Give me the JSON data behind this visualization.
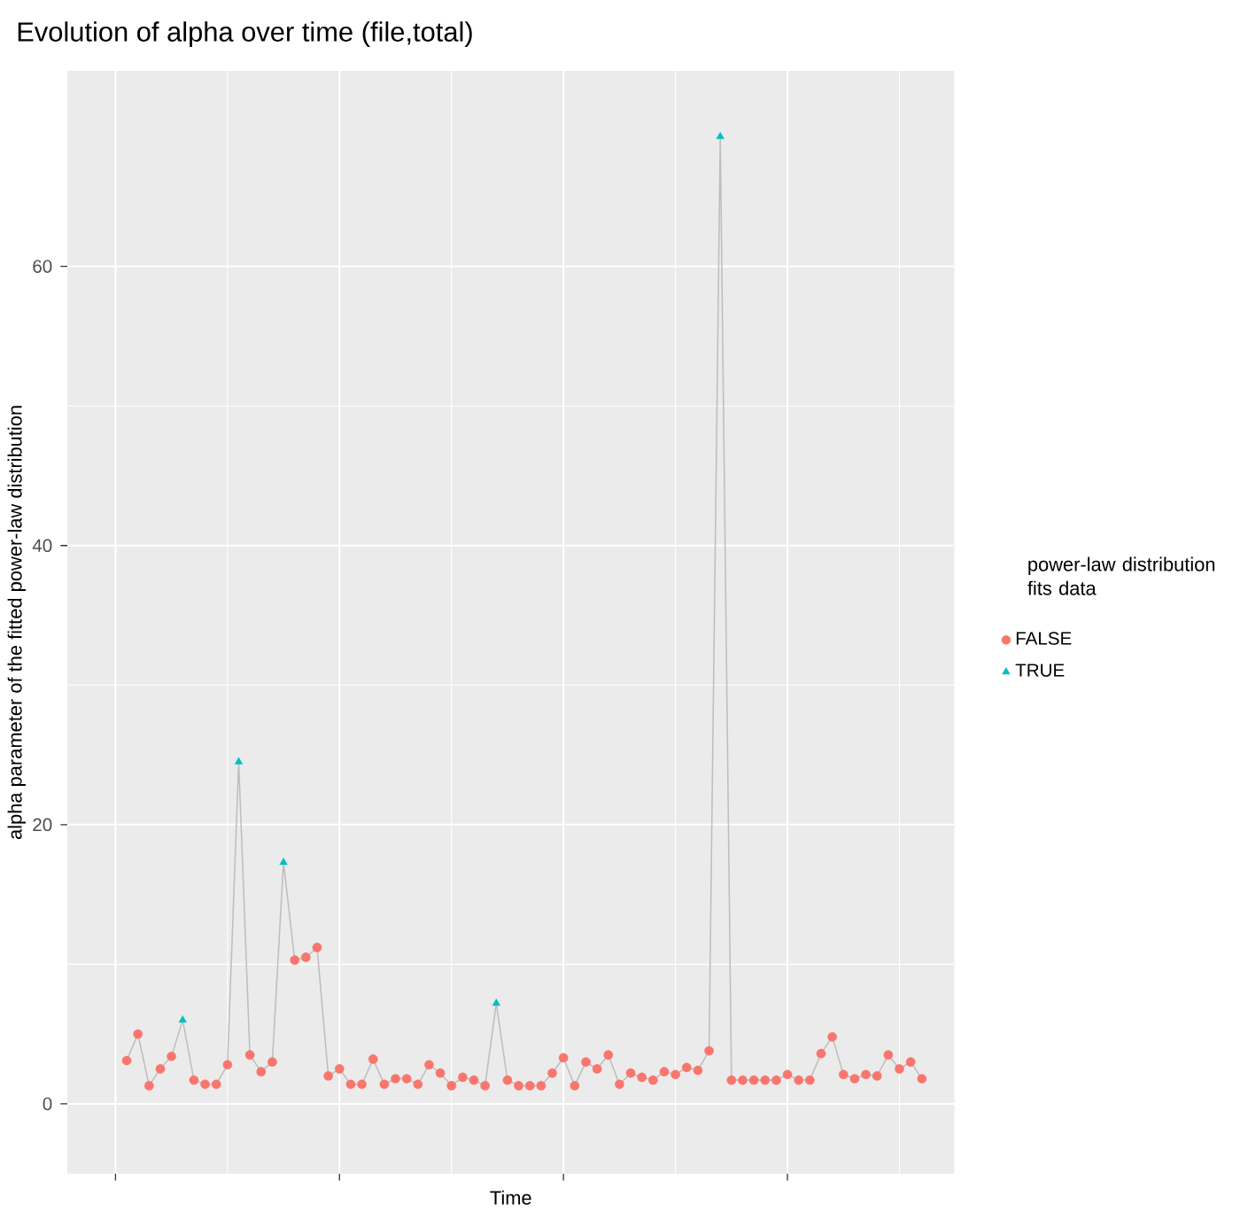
{
  "chart_data": {
    "type": "line",
    "title": "Evolution of alpha over time (file,total)",
    "xlabel": "Time",
    "ylabel": "alpha parameter of the fitted power-law distribution",
    "legend_title": "power-law distribution fits data",
    "categories": [
      null,
      null,
      null,
      null,
      null,
      null,
      null,
      null,
      null,
      null,
      null,
      null,
      null,
      null,
      null,
      null,
      null,
      null,
      null,
      null,
      null,
      null,
      null,
      null,
      null,
      null,
      null,
      null,
      null,
      null,
      null,
      null,
      null,
      null,
      null,
      null,
      null,
      null,
      null,
      null,
      null,
      null,
      null,
      null,
      null,
      null,
      null,
      null,
      null,
      null,
      null,
      null,
      null,
      null,
      null,
      null,
      null,
      null,
      null,
      null,
      null,
      null,
      null,
      null,
      null,
      null,
      null,
      null,
      null,
      null,
      null,
      null
    ],
    "series": [
      {
        "color": "#bebebe",
        "marker": "none",
        "values": [
          3.1,
          5.0,
          1.3,
          2.5,
          3.4,
          6.0,
          1.7,
          1.4,
          1.4,
          2.8,
          24.5,
          3.5,
          2.3,
          3.0,
          17.3,
          10.3,
          10.5,
          11.2,
          2.0,
          2.5,
          1.4,
          1.4,
          3.2,
          1.4,
          1.8,
          1.8,
          1.4,
          2.8,
          2.2,
          1.3,
          1.9,
          1.7,
          1.3,
          7.2,
          1.7,
          1.3,
          1.3,
          1.3,
          2.2,
          3.3,
          1.3,
          3.0,
          2.5,
          3.5,
          1.4,
          2.2,
          1.9,
          1.7,
          2.3,
          2.1,
          2.6,
          2.4,
          3.8,
          69.3,
          1.7,
          1.7,
          1.7,
          1.7,
          1.7,
          2.1,
          1.7,
          1.7,
          3.6,
          4.8,
          2.1,
          1.8,
          2.1,
          2.0,
          3.5,
          2.5,
          3.0,
          1.8
        ]
      },
      {
        "type": "scatter",
        "name": "FALSE",
        "color": "#f8766d",
        "marker": "circle",
        "values": [
          3.1,
          5.0,
          1.3,
          2.5,
          3.4,
          null,
          1.7,
          1.4,
          1.4,
          2.8,
          null,
          3.5,
          2.3,
          3.0,
          null,
          10.3,
          10.5,
          11.2,
          2.0,
          2.5,
          1.4,
          1.4,
          3.2,
          1.4,
          1.8,
          1.8,
          1.4,
          2.8,
          2.2,
          1.3,
          1.9,
          1.7,
          1.3,
          null,
          1.7,
          1.3,
          1.3,
          1.3,
          2.2,
          3.3,
          1.3,
          3.0,
          2.5,
          3.5,
          1.4,
          2.2,
          1.9,
          1.7,
          2.3,
          2.1,
          2.6,
          2.4,
          3.8,
          null,
          1.7,
          1.7,
          1.7,
          1.7,
          1.7,
          2.1,
          1.7,
          1.7,
          3.6,
          4.8,
          2.1,
          1.8,
          2.1,
          2.0,
          3.5,
          2.5,
          3.0,
          1.8
        ]
      },
      {
        "type": "scatter",
        "name": "TRUE",
        "color": "#00bfc4",
        "marker": "triangle",
        "values": [
          null,
          null,
          null,
          null,
          null,
          6.0,
          null,
          null,
          null,
          null,
          24.5,
          null,
          null,
          null,
          17.3,
          null,
          null,
          null,
          null,
          null,
          null,
          null,
          null,
          null,
          null,
          null,
          null,
          null,
          null,
          null,
          null,
          null,
          null,
          7.2,
          null,
          null,
          null,
          null,
          null,
          null,
          null,
          null,
          null,
          null,
          null,
          null,
          null,
          null,
          null,
          null,
          null,
          null,
          null,
          69.3,
          null,
          null,
          null,
          null,
          null,
          null,
          null,
          null,
          null,
          null,
          null,
          null,
          null,
          null,
          null,
          null,
          null,
          null
        ]
      }
    ],
    "ylim": [
      -5,
      74
    ],
    "yticks": [
      0,
      20,
      40,
      60
    ],
    "grid": true,
    "legend": "right",
    "tick_labels": "y"
  }
}
